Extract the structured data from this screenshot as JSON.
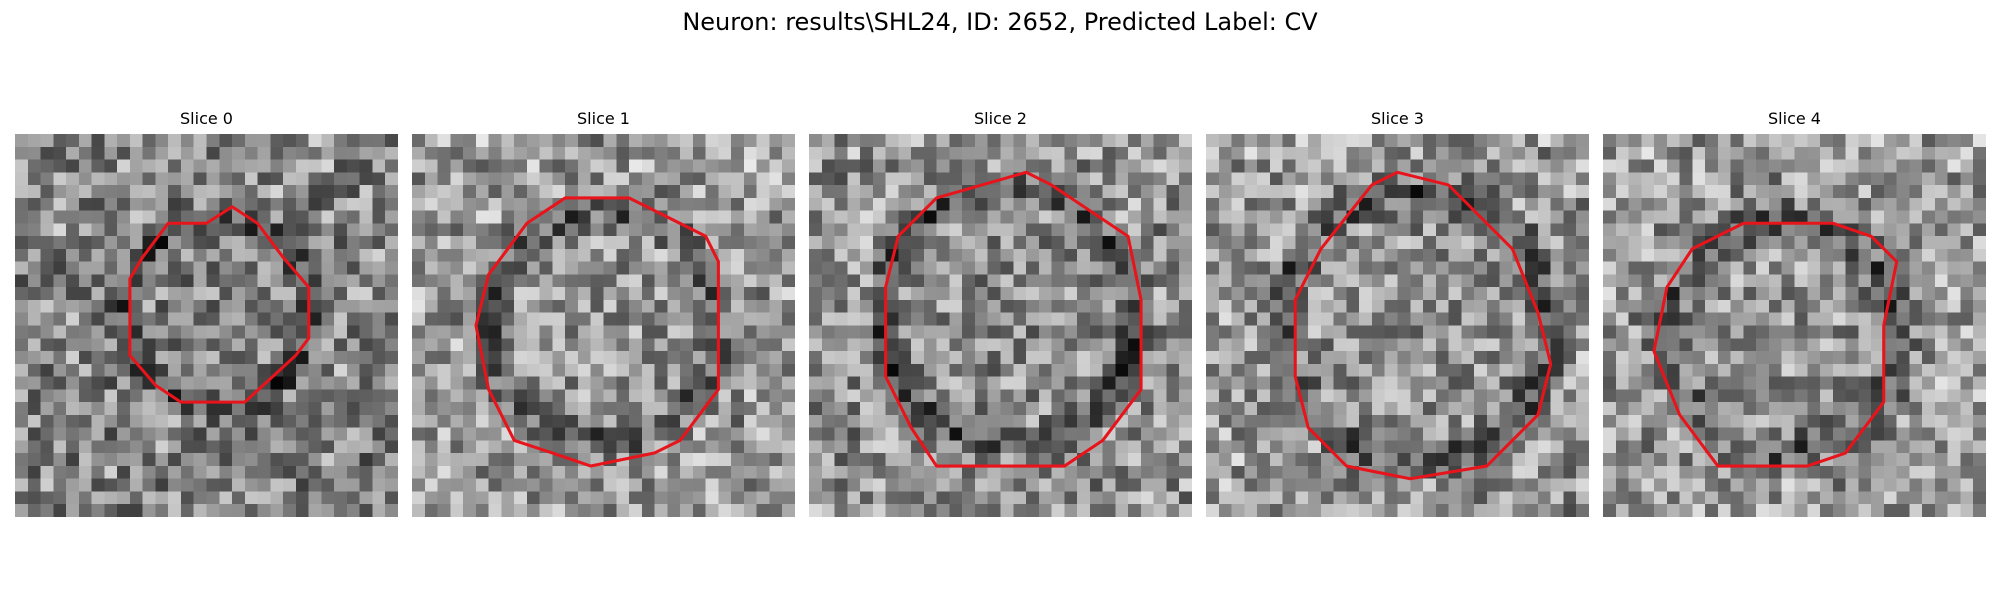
{
  "figure": {
    "title": "Neuron: results\\SHL24, ID: 2652, Predicted Label: CV"
  },
  "contour_color": "#e8141c",
  "panels": [
    {
      "label": "Slice 0",
      "contour": [
        [
          0.567,
          0.19
        ],
        [
          0.5,
          0.233
        ],
        [
          0.467,
          0.233
        ],
        [
          0.4,
          0.233
        ],
        [
          0.333,
          0.322
        ],
        [
          0.3,
          0.378
        ],
        [
          0.3,
          0.578
        ],
        [
          0.367,
          0.656
        ],
        [
          0.433,
          0.7
        ],
        [
          0.6,
          0.7
        ],
        [
          0.733,
          0.578
        ],
        [
          0.767,
          0.533
        ],
        [
          0.767,
          0.4
        ],
        [
          0.7,
          0.322
        ],
        [
          0.633,
          0.233
        ]
      ]
    },
    {
      "label": "Slice 1",
      "contour": [
        [
          0.4,
          0.167
        ],
        [
          0.567,
          0.167
        ],
        [
          0.767,
          0.267
        ],
        [
          0.8,
          0.333
        ],
        [
          0.8,
          0.667
        ],
        [
          0.7,
          0.8
        ],
        [
          0.633,
          0.833
        ],
        [
          0.467,
          0.867
        ],
        [
          0.367,
          0.833
        ],
        [
          0.267,
          0.8
        ],
        [
          0.2,
          0.667
        ],
        [
          0.167,
          0.5
        ],
        [
          0.2,
          0.367
        ],
        [
          0.3,
          0.233
        ]
      ]
    },
    {
      "label": "Slice 2",
      "contour": [
        [
          0.333,
          0.167
        ],
        [
          0.567,
          0.1
        ],
        [
          0.633,
          0.133
        ],
        [
          0.833,
          0.267
        ],
        [
          0.867,
          0.433
        ],
        [
          0.867,
          0.667
        ],
        [
          0.767,
          0.8
        ],
        [
          0.667,
          0.867
        ],
        [
          0.333,
          0.867
        ],
        [
          0.267,
          0.767
        ],
        [
          0.2,
          0.633
        ],
        [
          0.2,
          0.4
        ],
        [
          0.233,
          0.267
        ]
      ]
    },
    {
      "label": "Slice 3",
      "contour": [
        [
          0.5,
          0.1
        ],
        [
          0.633,
          0.133
        ],
        [
          0.8,
          0.3
        ],
        [
          0.867,
          0.467
        ],
        [
          0.9,
          0.6
        ],
        [
          0.867,
          0.733
        ],
        [
          0.733,
          0.867
        ],
        [
          0.533,
          0.9
        ],
        [
          0.367,
          0.867
        ],
        [
          0.267,
          0.767
        ],
        [
          0.233,
          0.633
        ],
        [
          0.233,
          0.433
        ],
        [
          0.3,
          0.3
        ],
        [
          0.433,
          0.133
        ]
      ]
    },
    {
      "label": "Slice 4",
      "contour": [
        [
          0.367,
          0.233
        ],
        [
          0.6,
          0.233
        ],
        [
          0.7,
          0.267
        ],
        [
          0.767,
          0.333
        ],
        [
          0.733,
          0.5
        ],
        [
          0.733,
          0.7
        ],
        [
          0.633,
          0.833
        ],
        [
          0.533,
          0.867
        ],
        [
          0.3,
          0.867
        ],
        [
          0.2,
          0.733
        ],
        [
          0.133,
          0.567
        ],
        [
          0.167,
          0.4
        ],
        [
          0.233,
          0.3
        ]
      ]
    }
  ]
}
